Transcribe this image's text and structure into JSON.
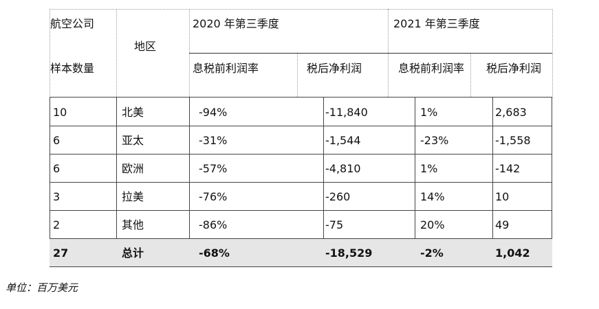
{
  "table": {
    "header": {
      "airline_label": "航空公司",
      "sample_label": "样本数量",
      "region_label": "地区",
      "period_2020": "2020 年第三季度",
      "period_2021": "2021 年第三季度",
      "ebit_margin_2020": "息税前利润率",
      "net_profit_2020": "税后净利润",
      "ebit_margin_2021": "息税前利润率",
      "net_profit_2021": "税后净利润"
    },
    "rows": [
      {
        "count": "10",
        "region": "北美",
        "ebit_2020": "-94%",
        "net_2020": "-11,840",
        "ebit_2021": "1%",
        "net_2021": "2,683"
      },
      {
        "count": "6",
        "region": "亚太",
        "ebit_2020": "-31%",
        "net_2020": "-1,544",
        "ebit_2021": "-23%",
        "net_2021": "-1,558"
      },
      {
        "count": "6",
        "region": "欧洲",
        "ebit_2020": "-57%",
        "net_2020": "-4,810",
        "ebit_2021": "1%",
        "net_2021": "-142"
      },
      {
        "count": "3",
        "region": "拉美",
        "ebit_2020": "-76%",
        "net_2020": "-260",
        "ebit_2021": "14%",
        "net_2021": "10"
      },
      {
        "count": "2",
        "region": "其他",
        "ebit_2020": "-86%",
        "net_2020": "-75",
        "ebit_2021": "20%",
        "net_2021": "49"
      }
    ],
    "total": {
      "count": "27",
      "region": "总计",
      "ebit_2020": "-68%",
      "net_2020": "-18,529",
      "ebit_2021": "-2%",
      "net_2021": "1,042"
    }
  },
  "note": "单位：百万美元"
}
